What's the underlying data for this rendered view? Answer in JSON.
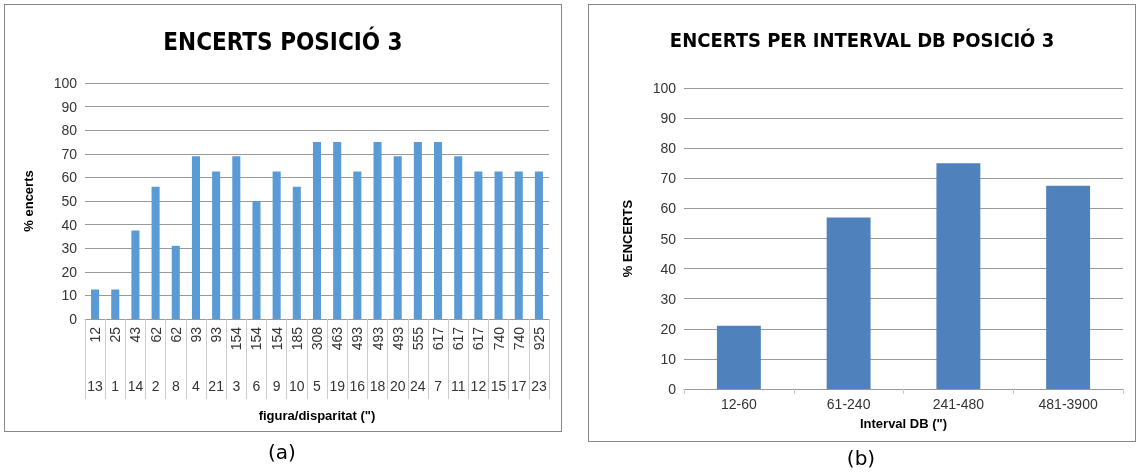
{
  "chart_data": [
    {
      "type": "bar",
      "title": "ENCERTS POSICIÓ 3",
      "xlabel": "figura/disparitat (\")",
      "ylabel": "% encerts",
      "categories": [
        "12\n13",
        "25\n1",
        "43\n14",
        "62\n2",
        "62\n8",
        "93\n4",
        "93\n21",
        "154\n3",
        "154\n6",
        "154\n9",
        "185\n10",
        "308\n5",
        "463\n19",
        "493\n16",
        "493\n18",
        "493\n20",
        "555\n24",
        "617\n7",
        "617\n11",
        "617\n12",
        "740\n15",
        "740\n17",
        "925\n23"
      ],
      "series": [
        {
          "color": "#5b9bd5",
          "values": [
            12.5,
            12.5,
            37.5,
            56,
            31,
            69,
            62.5,
            69,
            50,
            62.5,
            56,
            75,
            75,
            62.5,
            75,
            69,
            75,
            75,
            69,
            62.5,
            62.5,
            62.5,
            62.5
          ]
        }
      ],
      "ylim": [
        0,
        100
      ],
      "yticks": [
        0,
        10,
        20,
        30,
        40,
        50,
        60,
        70,
        80,
        90,
        100
      ],
      "grid": "y",
      "annotations": [
        "(a)"
      ]
    },
    {
      "type": "bar",
      "title": "ENCERTS PER INTERVAL DB POSICIÓ 3",
      "xlabel": "Interval DB (\")",
      "ylabel": "% ENCERTS",
      "categories": [
        "12-60",
        "61-240",
        "241-480",
        "481-3900"
      ],
      "series": [
        {
          "color": "#4f81bd",
          "values": [
            21,
            57,
            75,
            67.5
          ]
        }
      ],
      "ylim": [
        0,
        100
      ],
      "yticks": [
        0,
        10,
        20,
        30,
        40,
        50,
        60,
        70,
        80,
        90,
        100
      ],
      "grid": "y",
      "annotations": [
        "(b)"
      ]
    }
  ]
}
